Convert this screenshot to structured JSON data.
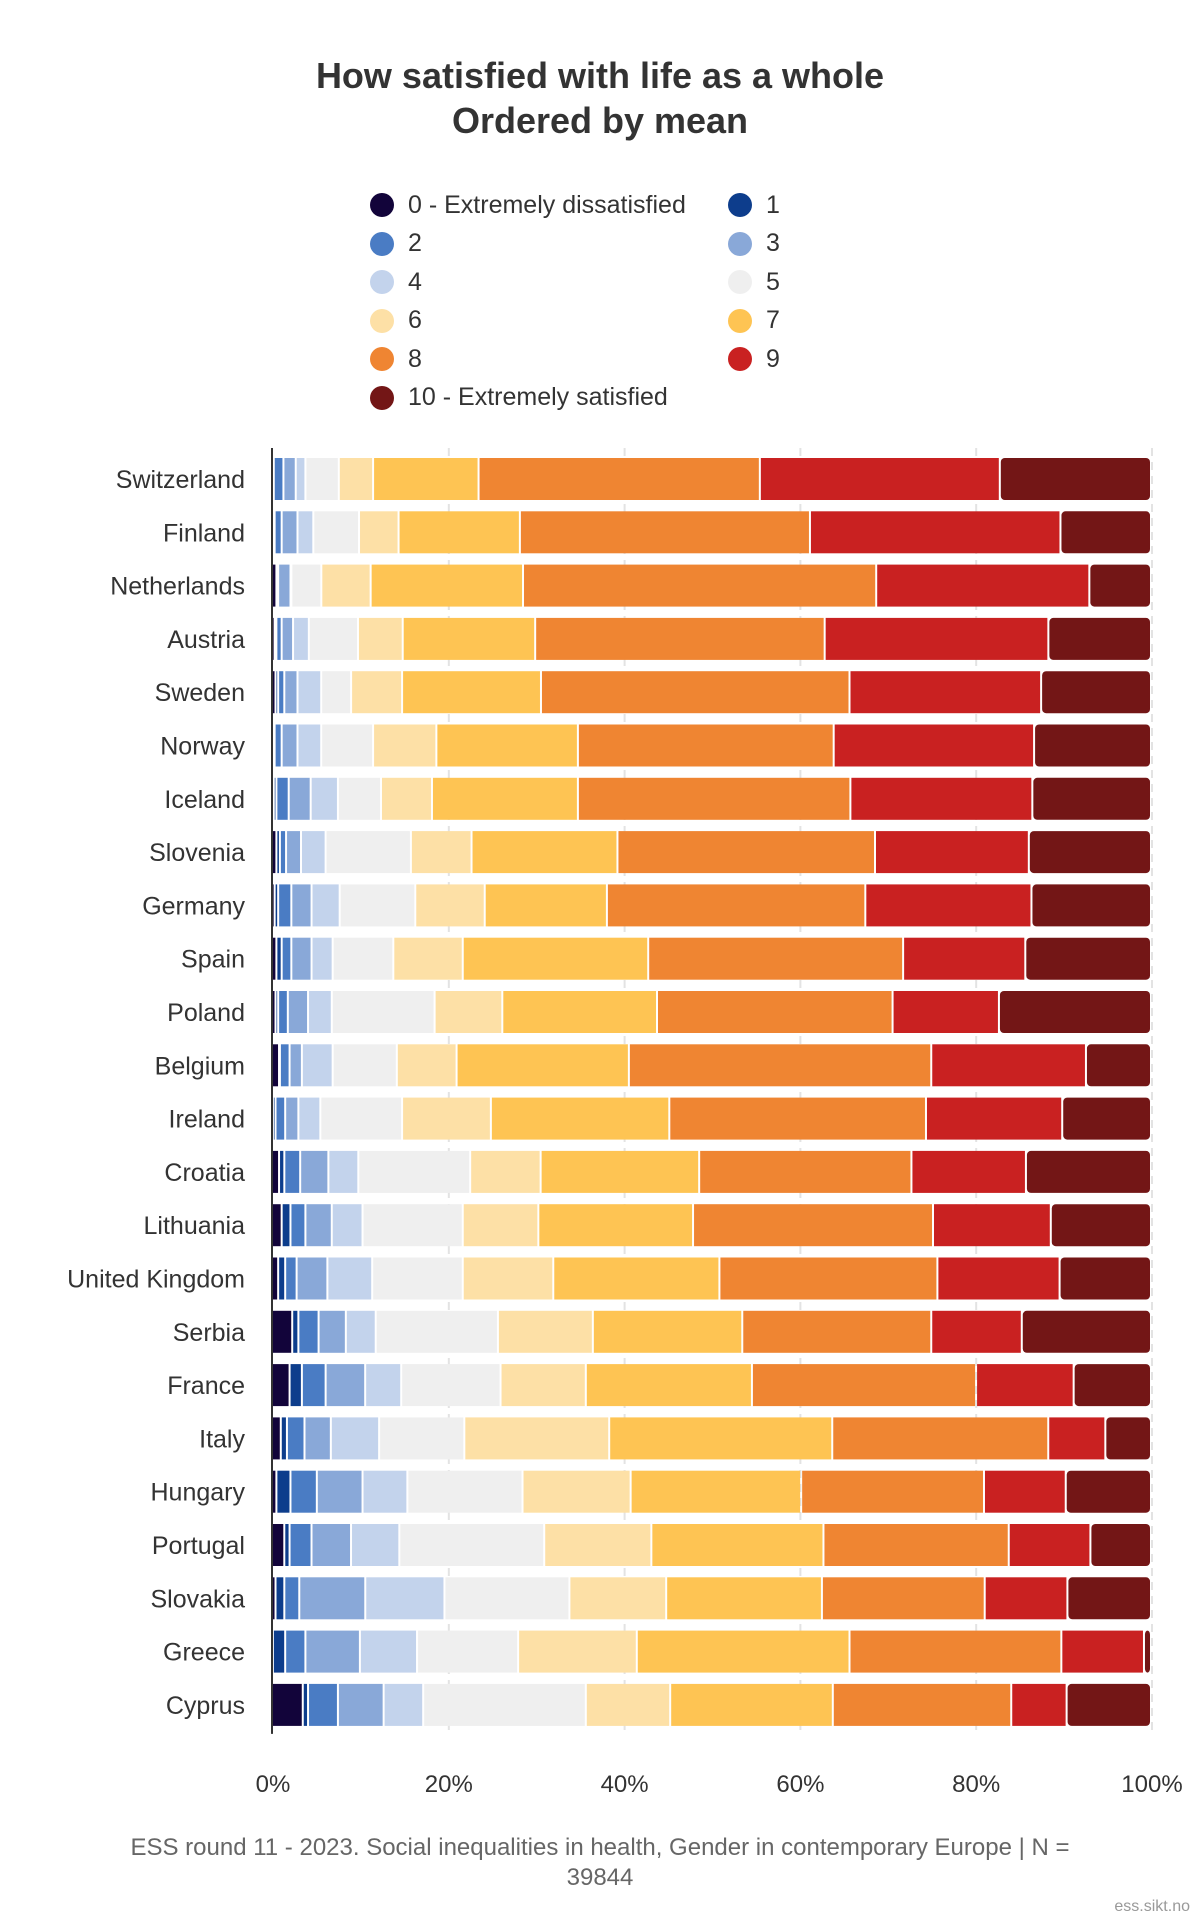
{
  "chart_data": {
    "type": "bar",
    "orientation": "horizontal-stacked-percent",
    "title": "How satisfied with life as a whole",
    "subtitle": "Ordered by mean",
    "xlabel": "",
    "ylabel": "",
    "xlim": [
      0,
      100
    ],
    "x_ticks": [
      "0%",
      "20%",
      "40%",
      "60%",
      "80%",
      "100%"
    ],
    "grid": true,
    "legend_position": "top",
    "legend": [
      {
        "label": "0 - Extremely dissatisfied",
        "color": "#12043a"
      },
      {
        "label": "1",
        "color": "#0d3d8c"
      },
      {
        "label": "2",
        "color": "#4a7cc4"
      },
      {
        "label": "3",
        "color": "#89a8d8"
      },
      {
        "label": "4",
        "color": "#c3d3ec"
      },
      {
        "label": "5",
        "color": "#efefef"
      },
      {
        "label": "6",
        "color": "#fde0a6"
      },
      {
        "label": "7",
        "color": "#fec453"
      },
      {
        "label": "8",
        "color": "#ef8532"
      },
      {
        "label": "9",
        "color": "#c92121"
      },
      {
        "label": "10 - Extremely satisfied",
        "color": "#731616"
      }
    ],
    "categories": [
      "Switzerland",
      "Finland",
      "Netherlands",
      "Austria",
      "Sweden",
      "Norway",
      "Iceland",
      "Slovenia",
      "Germany",
      "Spain",
      "Poland",
      "Belgium",
      "Ireland",
      "Croatia",
      "Lithuania",
      "United Kingdom",
      "Serbia",
      "France",
      "Italy",
      "Hungary",
      "Portugal",
      "Slovakia",
      "Greece",
      "Cyprus"
    ],
    "series": [
      {
        "name": "0 - Extremely dissatisfied",
        "values": [
          0.1,
          0.1,
          0.5,
          0.3,
          0.4,
          0.1,
          0.2,
          0.5,
          0.3,
          0.5,
          0.4,
          0.8,
          0.1,
          0.8,
          1.1,
          0.7,
          2.3,
          2.0,
          1.0,
          0.5,
          1.4,
          0.4,
          0.1,
          3.5
        ]
      },
      {
        "name": "1",
        "values": [
          0.1,
          0.2,
          0.1,
          0.2,
          0.3,
          0.2,
          0.3,
          0.4,
          0.4,
          0.6,
          0.3,
          0.1,
          0.3,
          0.6,
          1.0,
          0.8,
          0.7,
          1.4,
          0.7,
          1.6,
          0.6,
          1.0,
          1.4,
          0.6
        ]
      },
      {
        "name": "2",
        "values": [
          1.1,
          0.8,
          0.1,
          0.6,
          0.7,
          0.8,
          1.4,
          0.7,
          1.5,
          1.1,
          1.1,
          1.1,
          1.1,
          1.8,
          1.7,
          1.3,
          2.3,
          2.7,
          2.0,
          3.0,
          2.5,
          1.7,
          2.3,
          3.4
        ]
      },
      {
        "name": "3",
        "values": [
          1.4,
          1.8,
          1.4,
          1.3,
          1.5,
          1.8,
          2.5,
          1.7,
          2.3,
          2.3,
          2.3,
          1.4,
          1.5,
          3.2,
          3.0,
          3.5,
          3.1,
          4.5,
          3.0,
          5.2,
          4.5,
          7.5,
          6.2,
          5.2
        ]
      },
      {
        "name": "4",
        "values": [
          1.1,
          1.8,
          0.1,
          1.8,
          2.7,
          2.7,
          3.1,
          2.8,
          3.2,
          2.4,
          2.7,
          3.5,
          2.5,
          3.4,
          3.5,
          5.1,
          3.4,
          4.1,
          5.5,
          5.1,
          5.5,
          9.0,
          6.5,
          4.5
        ]
      },
      {
        "name": "5",
        "values": [
          3.8,
          5.2,
          3.4,
          5.6,
          3.4,
          5.9,
          4.9,
          9.7,
          8.6,
          6.9,
          11.7,
          7.3,
          9.3,
          12.7,
          11.4,
          10.3,
          13.9,
          11.3,
          9.7,
          13.1,
          16.5,
          14.2,
          11.5,
          18.5
        ]
      },
      {
        "name": "6",
        "values": [
          3.9,
          4.5,
          5.6,
          5.1,
          5.8,
          7.2,
          5.8,
          6.9,
          7.9,
          7.9,
          7.7,
          6.8,
          10.1,
          8.0,
          8.6,
          10.3,
          10.8,
          9.7,
          16.5,
          12.3,
          12.2,
          11.0,
          13.5,
          9.6
        ]
      },
      {
        "name": "7",
        "values": [
          12.0,
          13.8,
          17.3,
          15.1,
          15.8,
          16.1,
          16.6,
          16.6,
          13.9,
          21.1,
          17.6,
          19.6,
          20.3,
          18.0,
          17.6,
          18.9,
          17.0,
          18.9,
          25.4,
          19.4,
          19.6,
          17.7,
          24.2,
          18.5
        ]
      },
      {
        "name": "8",
        "values": [
          32.0,
          33.0,
          40.1,
          33.0,
          35.1,
          29.1,
          31.0,
          29.3,
          29.4,
          29.0,
          26.8,
          34.4,
          29.2,
          24.1,
          27.3,
          24.8,
          21.5,
          25.5,
          24.6,
          20.8,
          21.1,
          18.5,
          24.1,
          20.3
        ]
      },
      {
        "name": "9",
        "values": [
          27.3,
          28.5,
          24.2,
          25.5,
          21.8,
          22.8,
          20.7,
          17.5,
          18.9,
          13.9,
          12.1,
          17.6,
          15.5,
          13.0,
          13.4,
          13.9,
          10.3,
          11.1,
          6.5,
          9.3,
          9.3,
          9.4,
          9.4,
          6.3
        ]
      },
      {
        "name": "10 - Extremely satisfied",
        "values": [
          17.2,
          10.3,
          7.0,
          11.7,
          12.5,
          13.3,
          13.5,
          13.9,
          13.6,
          14.3,
          17.3,
          7.4,
          10.1,
          14.2,
          11.4,
          10.4,
          14.7,
          8.8,
          5.2,
          9.7,
          6.9,
          9.5,
          0.8,
          9.6
        ]
      }
    ],
    "caption": "ESS round 11 - 2023. Social inequalities in health, Gender in contemporary Europe | N = 39844",
    "credit": "ess.sikt.no"
  }
}
